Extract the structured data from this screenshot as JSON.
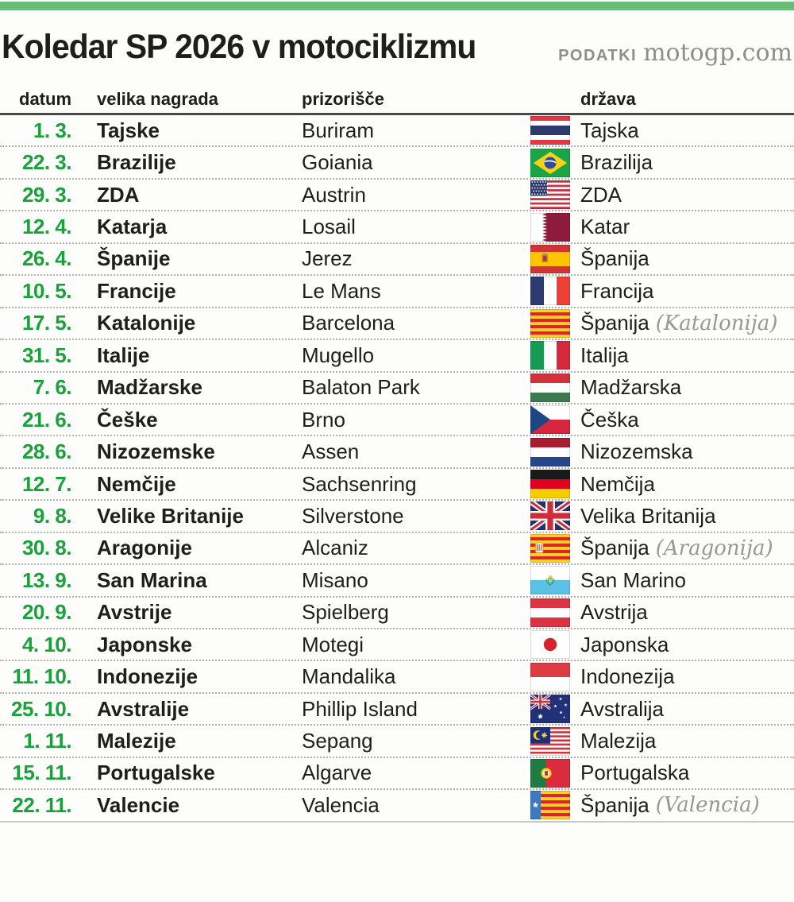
{
  "header": {
    "title": "Koledar SP 2026 v motociklizmu",
    "source_label": "PODATKI",
    "source_value": "motogp.com"
  },
  "colors": {
    "accent_bar_green": "#69bd77",
    "date_green": "#18a23a",
    "text_dark": "#1e1e1c",
    "muted_gray": "#8d8d8d"
  },
  "chart_data": {
    "type": "table",
    "title": "Koledar SP 2026 v motociklizmu",
    "columns": [
      "datum",
      "velika nagrada",
      "prizorišče",
      "država"
    ],
    "rows": [
      {
        "date": "1. 3.",
        "gp": "Tajske",
        "venue": "Buriram",
        "flag": "th",
        "country": "Tajska",
        "note": ""
      },
      {
        "date": "22. 3.",
        "gp": "Brazilije",
        "venue": "Goiania",
        "flag": "br",
        "country": "Brazilija",
        "note": ""
      },
      {
        "date": "29. 3.",
        "gp": "ZDA",
        "venue": "Austrin",
        "flag": "us",
        "country": "ZDA",
        "note": ""
      },
      {
        "date": "12. 4.",
        "gp": "Katarja",
        "venue": "Losail",
        "flag": "qa",
        "country": "Katar",
        "note": ""
      },
      {
        "date": "26. 4.",
        "gp": "Španije",
        "venue": "Jerez",
        "flag": "es",
        "country": "Španija",
        "note": ""
      },
      {
        "date": "10. 5.",
        "gp": "Francije",
        "venue": "Le Mans",
        "flag": "fr",
        "country": "Francija",
        "note": ""
      },
      {
        "date": "17. 5.",
        "gp": "Katalonije",
        "venue": "Barcelona",
        "flag": "ct",
        "country": "Španija",
        "note": "(Katalonija)"
      },
      {
        "date": "31. 5.",
        "gp": "Italije",
        "venue": "Mugello",
        "flag": "it",
        "country": "Italija",
        "note": ""
      },
      {
        "date": "7. 6.",
        "gp": "Madžarske",
        "venue": "Balaton Park",
        "flag": "hu",
        "country": "Madžarska",
        "note": ""
      },
      {
        "date": "21. 6.",
        "gp": "Češke",
        "venue": "Brno",
        "flag": "cz",
        "country": "Češka",
        "note": ""
      },
      {
        "date": "28. 6.",
        "gp": "Nizozemske",
        "venue": "Assen",
        "flag": "nl",
        "country": "Nizozemska",
        "note": ""
      },
      {
        "date": "12. 7.",
        "gp": "Nemčije",
        "venue": "Sachsenring",
        "flag": "de",
        "country": "Nemčija",
        "note": ""
      },
      {
        "date": "9. 8.",
        "gp": "Velike Britanije",
        "venue": "Silverstone",
        "flag": "gb",
        "country": "Velika Britanija",
        "note": ""
      },
      {
        "date": "30. 8.",
        "gp": "Aragonije",
        "venue": "Alcaniz",
        "flag": "ar",
        "country": "Španija",
        "note": "(Aragonija)"
      },
      {
        "date": "13. 9.",
        "gp": "San Marina",
        "venue": "Misano",
        "flag": "sm",
        "country": "San Marino",
        "note": ""
      },
      {
        "date": "20. 9.",
        "gp": "Avstrije",
        "venue": "Spielberg",
        "flag": "at",
        "country": "Avstrija",
        "note": ""
      },
      {
        "date": "4. 10.",
        "gp": "Japonske",
        "venue": "Motegi",
        "flag": "jp",
        "country": "Japonska",
        "note": ""
      },
      {
        "date": "11. 10.",
        "gp": "Indonezije",
        "venue": "Mandalika",
        "flag": "id",
        "country": "Indonezija",
        "note": ""
      },
      {
        "date": "25. 10.",
        "gp": "Avstralije",
        "venue": "Phillip Island",
        "flag": "au",
        "country": "Avstralija",
        "note": ""
      },
      {
        "date": "1. 11.",
        "gp": "Malezije",
        "venue": "Sepang",
        "flag": "my",
        "country": "Malezija",
        "note": ""
      },
      {
        "date": "15. 11.",
        "gp": "Portugalske",
        "venue": "Algarve",
        "flag": "pt",
        "country": "Portugalska",
        "note": ""
      },
      {
        "date": "22. 11.",
        "gp": "Valencie",
        "venue": "Valencia",
        "flag": "vc",
        "country": "Španija",
        "note": "(Valencia)"
      }
    ]
  }
}
